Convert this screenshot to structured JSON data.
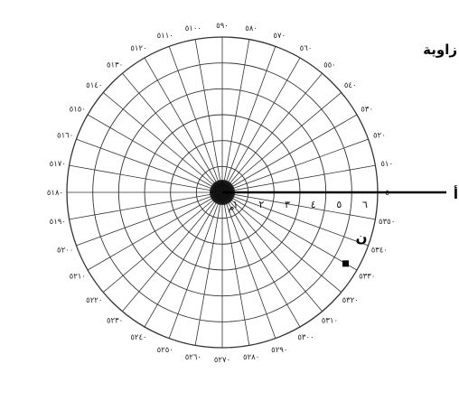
{
  "heading": "زاوية",
  "pole_label": "م",
  "ray_end_label": "أ",
  "point_label": "ن",
  "ray_numbers": [
    "١",
    "٢",
    "٣",
    "٤",
    "٥",
    "٦"
  ],
  "degree_labels": [
    {
      "deg": 0,
      "text": "٥٠"
    },
    {
      "deg": 10,
      "text": "٥١٠"
    },
    {
      "deg": 20,
      "text": "٥٢٠"
    },
    {
      "deg": 30,
      "text": "٥٣٠"
    },
    {
      "deg": 40,
      "text": "٥٤٠"
    },
    {
      "deg": 50,
      "text": "٥٥٠"
    },
    {
      "deg": 60,
      "text": "٥٦٠"
    },
    {
      "deg": 70,
      "text": "٥٧٠"
    },
    {
      "deg": 80,
      "text": "٥٨٠"
    },
    {
      "deg": 90,
      "text": "٥٩٠"
    },
    {
      "deg": 100,
      "text": "٥١٠٠"
    },
    {
      "deg": 110,
      "text": "٥١١٠"
    },
    {
      "deg": 120,
      "text": "٥١٢٠"
    },
    {
      "deg": 130,
      "text": "٥١٣٠"
    },
    {
      "deg": 140,
      "text": "٥١٤٠"
    },
    {
      "deg": 150,
      "text": "٥١٥٠"
    },
    {
      "deg": 160,
      "text": "٥١٦٠"
    },
    {
      "deg": 170,
      "text": "٥١٧٠"
    },
    {
      "deg": 180,
      "text": "٥١٨٠"
    },
    {
      "deg": 190,
      "text": "٥١٩٠"
    },
    {
      "deg": 200,
      "text": "٥٢٠٠"
    },
    {
      "deg": 210,
      "text": "٥٢١٠"
    },
    {
      "deg": 220,
      "text": "٥٢٢٠"
    },
    {
      "deg": 230,
      "text": "٥٢٣٠"
    },
    {
      "deg": 240,
      "text": "٥٢٤٠"
    },
    {
      "deg": 250,
      "text": "٥٢٥٠"
    },
    {
      "deg": 260,
      "text": "٥٢٦٠"
    },
    {
      "deg": 270,
      "text": "٥٢٧٠"
    },
    {
      "deg": 280,
      "text": "٥٢٨٠"
    },
    {
      "deg": 290,
      "text": "٥٢٩٠"
    },
    {
      "deg": 300,
      "text": "٥٣٠٠"
    },
    {
      "deg": 310,
      "text": "٥٣١٠"
    },
    {
      "deg": 320,
      "text": "٥٣٢٠"
    },
    {
      "deg": 330,
      "text": "٥٣٣٠"
    },
    {
      "deg": 340,
      "text": "٥٣٤٠"
    },
    {
      "deg": 350,
      "text": "٥٣٥٠"
    }
  ],
  "rings": 6,
  "spoke_step_deg": 10,
  "point": {
    "r": 5.5,
    "angle_deg": 330
  },
  "colors": {
    "line": "#333333",
    "ink": "#000000"
  }
}
